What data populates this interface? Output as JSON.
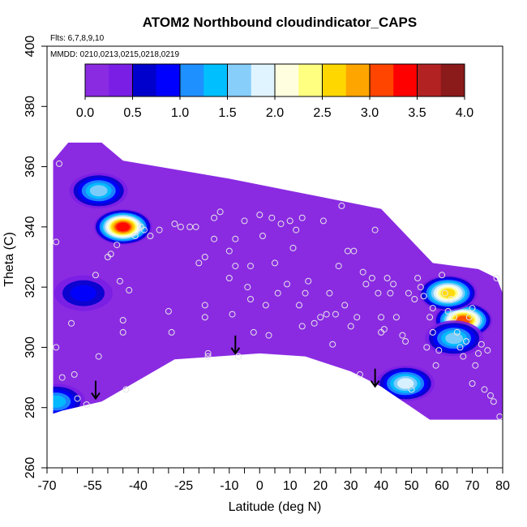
{
  "chart_data": {
    "type": "heatmap",
    "title": "ATOM2 Northbound cloudindicator_CAPS",
    "annotations": {
      "flights": "Flts: 6,7,8,9,10",
      "dates": "MMDD: 0210,0213,0215,0218,0219"
    },
    "xlabel": "Latitude (deg N)",
    "ylabel": "Theta (C)",
    "xlim": [
      -70,
      80
    ],
    "ylim": [
      260,
      400
    ],
    "x_ticks": [
      -70,
      -55,
      -40,
      -25,
      -10,
      0,
      10,
      20,
      30,
      40,
      50,
      60,
      70,
      80
    ],
    "x_tick_labels": [
      "-70",
      "-55",
      "-40",
      "-25",
      "-10",
      "0",
      "10",
      "20",
      "30",
      "40",
      "50",
      "60",
      "70",
      "80"
    ],
    "y_ticks": [
      260,
      280,
      300,
      320,
      340,
      360,
      380,
      400
    ],
    "y_tick_labels": [
      "260",
      "280",
      "300",
      "320",
      "340",
      "360",
      "380",
      "400"
    ],
    "colorbar": {
      "range": [
        0,
        4
      ],
      "ticks": [
        0,
        0.5,
        1,
        1.5,
        2,
        2.5,
        3,
        3.5,
        4
      ],
      "tick_labels": [
        "0.0",
        "0.5",
        "1.0",
        "1.5",
        "2.0",
        "2.5",
        "3.0",
        "3.5",
        "4.0"
      ],
      "colors": [
        "#8a2be2",
        "#7a1ee6",
        "#0000cd",
        "#0000ff",
        "#1e90ff",
        "#00bfff",
        "#87cefa",
        "#e0f4ff",
        "#ffffe0",
        "#ffff80",
        "#ffd700",
        "#ffa500",
        "#ff4500",
        "#ff0000",
        "#b22222",
        "#8b1a1a"
      ]
    },
    "background_value": 0.0,
    "domain_outline": [
      [
        -68,
        362
      ],
      [
        -63,
        368
      ],
      [
        -52,
        368
      ],
      [
        -45,
        362
      ],
      [
        -10,
        356
      ],
      [
        40,
        346
      ],
      [
        57,
        328
      ],
      [
        72,
        326
      ],
      [
        78,
        323
      ],
      [
        80,
        318
      ],
      [
        80,
        276
      ],
      [
        56,
        276
      ],
      [
        40,
        287
      ],
      [
        30,
        292
      ],
      [
        15,
        297
      ],
      [
        0,
        298
      ],
      [
        -28,
        296
      ],
      [
        -52,
        282
      ],
      [
        -65,
        279
      ],
      [
        -68,
        278
      ]
    ],
    "highlight_regions": [
      {
        "lat": -45,
        "theta": 340,
        "value": 3.3
      },
      {
        "lat": -53,
        "theta": 352,
        "value": 1.6
      },
      {
        "lat": -58,
        "theta": 318,
        "value": 0.8
      },
      {
        "lat": 48,
        "theta": 288,
        "value": 1.8
      },
      {
        "lat": 67,
        "theta": 309,
        "value": 3.0
      },
      {
        "lat": 62,
        "theta": 318,
        "value": 2.6
      },
      {
        "lat": 64,
        "theta": 303,
        "value": 1.4
      },
      {
        "lat": -67,
        "theta": 282,
        "value": 1.2
      }
    ],
    "sample_points": [
      [
        -66,
        361
      ],
      [
        -67,
        335
      ],
      [
        -67,
        300
      ],
      [
        -65,
        290
      ],
      [
        -61,
        291
      ],
      [
        -62,
        308
      ],
      [
        -60,
        283
      ],
      [
        -57,
        281
      ],
      [
        -54,
        324
      ],
      [
        -53,
        297
      ],
      [
        -50,
        330
      ],
      [
        -49,
        331
      ],
      [
        -47,
        334
      ],
      [
        -45,
        305
      ],
      [
        -45,
        309
      ],
      [
        -46,
        322
      ],
      [
        -44,
        286
      ],
      [
        -43,
        319
      ],
      [
        -41,
        337
      ],
      [
        -39,
        340
      ],
      [
        -38,
        339
      ],
      [
        -36,
        337
      ],
      [
        -33,
        339
      ],
      [
        -30,
        312
      ],
      [
        -29,
        305
      ],
      [
        -28,
        341
      ],
      [
        -26,
        340
      ],
      [
        -23,
        340
      ],
      [
        -21,
        340
      ],
      [
        -20,
        328
      ],
      [
        -18,
        330
      ],
      [
        -18,
        310
      ],
      [
        -18,
        314
      ],
      [
        -17,
        298
      ],
      [
        -17,
        297
      ],
      [
        -15,
        336
      ],
      [
        -15,
        343
      ],
      [
        -13,
        345
      ],
      [
        -10,
        332
      ],
      [
        -10,
        323
      ],
      [
        -9,
        311
      ],
      [
        -8,
        336
      ],
      [
        -8,
        327
      ],
      [
        -7,
        297
      ],
      [
        -5,
        342
      ],
      [
        -4,
        320
      ],
      [
        -3,
        316
      ],
      [
        -3,
        327
      ],
      [
        -2,
        305
      ],
      [
        0,
        344
      ],
      [
        1,
        337
      ],
      [
        2,
        314
      ],
      [
        3,
        304
      ],
      [
        4,
        343
      ],
      [
        5,
        328
      ],
      [
        6,
        318
      ],
      [
        7,
        341
      ],
      [
        9,
        321
      ],
      [
        10,
        342
      ],
      [
        11,
        333
      ],
      [
        12,
        339
      ],
      [
        13,
        314
      ],
      [
        14,
        343
      ],
      [
        14,
        307
      ],
      [
        15,
        318
      ],
      [
        16,
        322
      ],
      [
        18,
        308
      ],
      [
        20,
        310
      ],
      [
        21,
        342
      ],
      [
        22,
        311
      ],
      [
        23,
        318
      ],
      [
        24,
        301
      ],
      [
        25,
        311
      ],
      [
        26,
        327
      ],
      [
        27,
        347
      ],
      [
        28,
        314
      ],
      [
        29,
        332
      ],
      [
        30,
        307
      ],
      [
        31,
        332
      ],
      [
        32,
        310
      ],
      [
        33,
        291
      ],
      [
        34,
        325
      ],
      [
        35,
        321
      ],
      [
        37,
        323
      ],
      [
        38,
        339
      ],
      [
        39,
        318
      ],
      [
        40,
        310
      ],
      [
        40,
        305
      ],
      [
        41,
        306
      ],
      [
        42,
        323
      ],
      [
        43,
        318
      ],
      [
        44,
        321
      ],
      [
        45,
        310
      ],
      [
        47,
        304
      ],
      [
        48,
        302
      ],
      [
        49,
        318
      ],
      [
        50,
        286
      ],
      [
        51,
        316
      ],
      [
        52,
        323
      ],
      [
        53,
        320
      ],
      [
        54,
        317
      ],
      [
        55,
        300
      ],
      [
        56,
        310
      ],
      [
        57,
        313
      ],
      [
        57,
        305
      ],
      [
        58,
        294
      ],
      [
        59,
        299
      ],
      [
        60,
        324
      ],
      [
        61,
        318
      ],
      [
        62,
        312
      ],
      [
        63,
        316
      ],
      [
        64,
        310
      ],
      [
        65,
        305
      ],
      [
        66,
        300
      ],
      [
        67,
        297
      ],
      [
        68,
        302
      ],
      [
        69,
        310
      ],
      [
        70,
        313
      ],
      [
        70,
        288
      ],
      [
        71,
        294
      ],
      [
        72,
        298
      ],
      [
        73,
        301
      ],
      [
        74,
        286
      ],
      [
        75,
        299
      ],
      [
        76,
        284
      ],
      [
        77,
        282
      ],
      [
        78,
        323
      ],
      [
        79,
        277
      ]
    ],
    "arrows": [
      {
        "lat": -54,
        "theta": 283
      },
      {
        "lat": -8,
        "theta": 298
      },
      {
        "lat": 38,
        "theta": 287
      }
    ]
  }
}
